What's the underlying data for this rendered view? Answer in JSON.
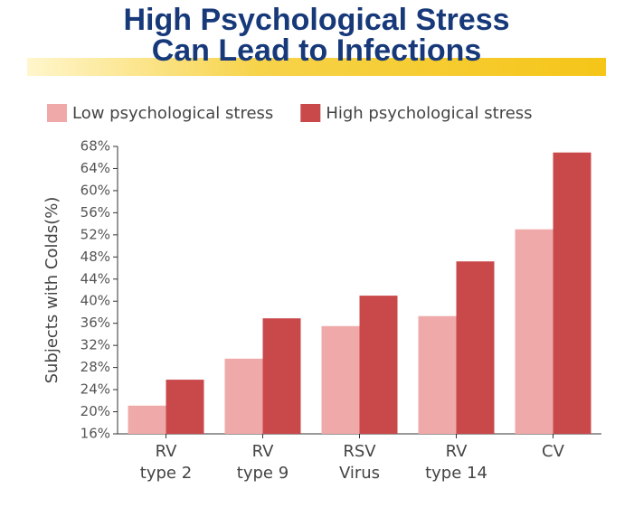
{
  "chart_data": {
    "type": "bar",
    "title": [
      "High Psychological Stress",
      "Can Lead to Infections"
    ],
    "ylabel": "Subjects with Colds(%)",
    "categories": [
      [
        "RV",
        "type 2"
      ],
      [
        "RV",
        "type 9"
      ],
      [
        "RSV",
        "Virus"
      ],
      [
        "RV",
        "type 14"
      ],
      [
        "CV"
      ]
    ],
    "series": [
      {
        "name": "Low psychological stress",
        "color": "#f0a9a9",
        "values": [
          21.1,
          29.6,
          35.5,
          37.3,
          53
        ]
      },
      {
        "name": "High psychological stress",
        "color": "#c9484a",
        "values": [
          25.8,
          36.9,
          41,
          47.2,
          66.9
        ]
      }
    ],
    "ylim": [
      16,
      68
    ],
    "yticks": [
      {
        "value": 16,
        "label": "16%"
      },
      {
        "value": 20,
        "label": "20%"
      },
      {
        "value": 24,
        "label": "24%"
      },
      {
        "value": 28,
        "label": "28%"
      },
      {
        "value": 32,
        "label": "32%"
      },
      {
        "value": 36,
        "label": "36%"
      },
      {
        "value": 40,
        "label": "40%"
      },
      {
        "value": 44,
        "label": "44%"
      },
      {
        "value": 48,
        "label": "48%"
      },
      {
        "value": 52,
        "label": "52%"
      },
      {
        "value": 56,
        "label": "56%"
      },
      {
        "value": 60,
        "label": "60%"
      },
      {
        "value": 64,
        "label": "64%"
      },
      {
        "value": 68,
        "label": "68%"
      }
    ],
    "grid": false
  }
}
